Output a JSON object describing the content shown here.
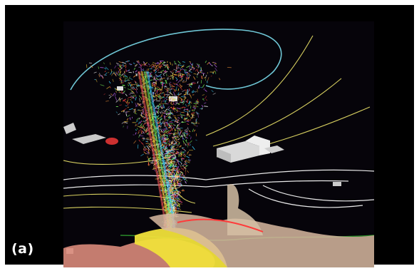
{
  "figure": {
    "panel_label": "(a)",
    "background": "#000000",
    "plume_colors": [
      "#ff4040",
      "#ffd23a",
      "#7cff5a",
      "#3ad6ff",
      "#c86bff",
      "#ffffff",
      "#ff9a3a"
    ],
    "contour_colors": {
      "cyan": "#6fc7d6",
      "yellow": "#d8d060",
      "white": "#e8e8e8",
      "green": "#2a8a2a"
    }
  }
}
